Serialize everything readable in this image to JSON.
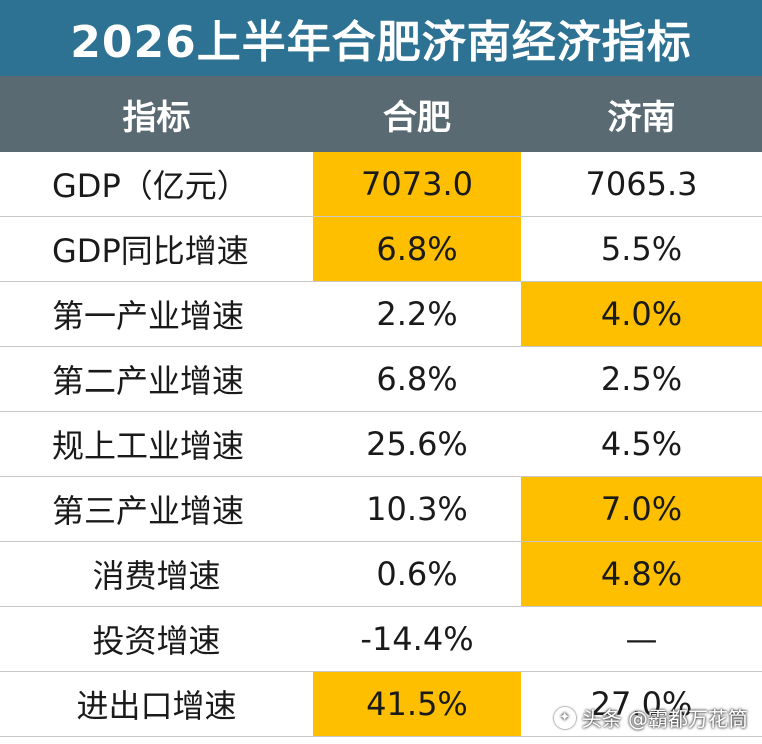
{
  "title": "2026上半年合肥济南经济指标",
  "headers": [
    "指标",
    "合肥",
    "济南"
  ],
  "rows": [
    {
      "label": "GDP（亿元）",
      "hefei": "7073.0",
      "jinan": "7065.3",
      "highlight": "hefei",
      "align": "left"
    },
    {
      "label": "GDP同比增速",
      "hefei": "6.8%",
      "jinan": "5.5%",
      "highlight": "hefei",
      "align": "left"
    },
    {
      "label": "第一产业增速",
      "hefei": "2.2%",
      "jinan": "4.0%",
      "highlight": "jinan",
      "align": "left"
    },
    {
      "label": "第二产业增速",
      "hefei": "6.8%",
      "jinan": "2.5%",
      "highlight": "none",
      "align": "left"
    },
    {
      "label": "规上工业增速",
      "hefei": "25.6%",
      "jinan": "4.5%",
      "highlight": "none",
      "align": "left"
    },
    {
      "label": "第三产业增速",
      "hefei": "10.3%",
      "jinan": "7.0%",
      "highlight": "jinan",
      "align": "left"
    },
    {
      "label": "消费增速",
      "hefei": "0.6%",
      "jinan": "4.8%",
      "highlight": "jinan",
      "align": "center"
    },
    {
      "label": "投资增速",
      "hefei": "-14.4%",
      "jinan": "—",
      "highlight": "none",
      "align": "center"
    },
    {
      "label": "进出口增速",
      "hefei": "41.5%",
      "jinan": "27.0%",
      "highlight": "hefei",
      "align": "center"
    }
  ],
  "watermark": "头条 @霸都万花筒",
  "colors": {
    "title_bg": "#2d7193",
    "header_bg": "#5a6a72",
    "highlight": "#fdbf00"
  }
}
